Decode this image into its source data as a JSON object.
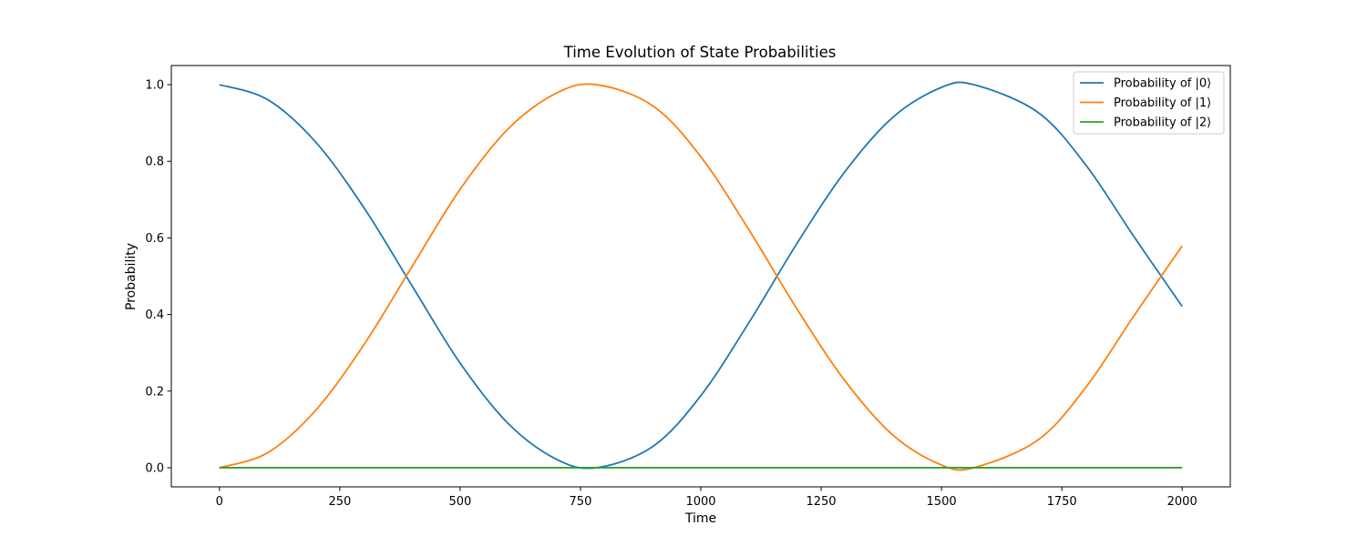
{
  "chart_data": {
    "type": "line",
    "title": "Time Evolution of State Probabilities",
    "xlabel": "Time",
    "ylabel": "Probability",
    "xlim": [
      -100,
      2100
    ],
    "ylim": [
      -0.05,
      1.05
    ],
    "xticks": [
      0,
      250,
      500,
      750,
      1000,
      1250,
      1500,
      1750,
      2000
    ],
    "xtick_labels": [
      "0",
      "250",
      "500",
      "750",
      "1000",
      "1250",
      "1500",
      "1750",
      "2000"
    ],
    "yticks": [
      0.0,
      0.2,
      0.4,
      0.6,
      0.8,
      1.0
    ],
    "ytick_labels": [
      "0.0",
      "0.2",
      "0.4",
      "0.6",
      "0.8",
      "1.0"
    ],
    "grid": false,
    "legend_position": "top-right",
    "x": [
      0,
      100,
      200,
      300,
      400,
      500,
      600,
      700,
      783,
      900,
      1000,
      1100,
      1200,
      1300,
      1400,
      1500,
      1567,
      1700,
      1800,
      1900,
      2000
    ],
    "series": [
      {
        "name": "Probability of |0⟩",
        "color": "#1f77b4",
        "values": [
          1.0,
          0.961,
          0.85,
          0.679,
          0.475,
          0.273,
          0.115,
          0.022,
          0.0,
          0.055,
          0.188,
          0.379,
          0.586,
          0.774,
          0.916,
          0.993,
          1.0,
          0.928,
          0.79,
          0.603,
          0.421
        ]
      },
      {
        "name": "Probability of |1⟩",
        "color": "#ff7f0e",
        "values": [
          0.0,
          0.039,
          0.15,
          0.321,
          0.525,
          0.727,
          0.885,
          0.978,
          1.0,
          0.945,
          0.812,
          0.621,
          0.414,
          0.226,
          0.084,
          0.007,
          0.0,
          0.072,
          0.21,
          0.397,
          0.579
        ]
      },
      {
        "name": "Probability of |2⟩",
        "color": "#2ca02c",
        "values": [
          0,
          0,
          0,
          0,
          0,
          0,
          0,
          0,
          0,
          0,
          0,
          0,
          0,
          0,
          0,
          0,
          0,
          0,
          0,
          0,
          0
        ]
      }
    ]
  }
}
